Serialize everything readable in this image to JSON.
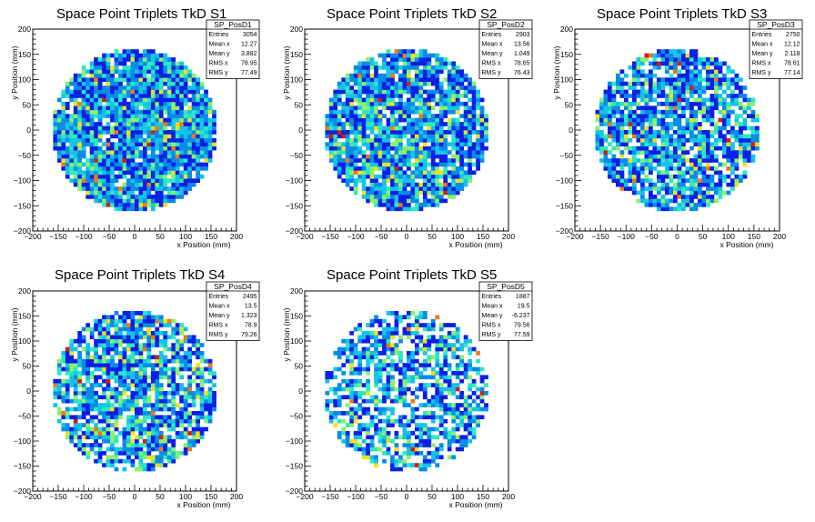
{
  "chart_data": [
    {
      "type": "heatmap",
      "title": "Space Point Triplets TkD S1",
      "xlabel": "x Position (mm)",
      "ylabel": "y Position (mm)",
      "xlim": [
        -200,
        200
      ],
      "ylim": [
        -200,
        200
      ],
      "xticks": [
        "−200",
        "−150",
        "−100",
        "−50",
        "0",
        "50",
        "100",
        "150",
        "200"
      ],
      "yticks": [
        "200",
        "150",
        "100",
        "50",
        "0",
        "−50",
        "−100",
        "−150",
        "−200"
      ],
      "stats": {
        "name": "SP_PosD1",
        "rows": [
          {
            "label": "Entries",
            "value": "3054"
          },
          {
            "label": "Mean x",
            "value": "12.27"
          },
          {
            "label": "Mean y",
            "value": "3.882"
          },
          {
            "label": "RMS x",
            "value": "78.95"
          },
          {
            "label": "RMS y",
            "value": "77.49"
          }
        ]
      }
    },
    {
      "type": "heatmap",
      "title": "Space Point Triplets TkD S2",
      "xlabel": "x Position (mm)",
      "ylabel": "y Position (mm)",
      "xlim": [
        -200,
        200
      ],
      "ylim": [
        -200,
        200
      ],
      "xticks": [
        "−200",
        "−150",
        "−100",
        "−50",
        "0",
        "50",
        "100",
        "150",
        "200"
      ],
      "yticks": [
        "200",
        "150",
        "100",
        "50",
        "0",
        "−50",
        "−100",
        "−150",
        "−200"
      ],
      "stats": {
        "name": "SP_PosD2",
        "rows": [
          {
            "label": "Entries",
            "value": "2903"
          },
          {
            "label": "Mean x",
            "value": "13.56"
          },
          {
            "label": "Mean y",
            "value": "1.049"
          },
          {
            "label": "RMS x",
            "value": "78.65"
          },
          {
            "label": "RMS y",
            "value": "76.43"
          }
        ]
      }
    },
    {
      "type": "heatmap",
      "title": "Space Point Triplets TkD S3",
      "xlabel": "x Position (mm)",
      "ylabel": "y Position (mm)",
      "xlim": [
        -200,
        200
      ],
      "ylim": [
        -200,
        200
      ],
      "xticks": [
        "−200",
        "−150",
        "−100",
        "−50",
        "0",
        "50",
        "100",
        "150",
        "200"
      ],
      "yticks": [
        "200",
        "150",
        "100",
        "50",
        "0",
        "−50",
        "−100",
        "−150",
        "−200"
      ],
      "stats": {
        "name": "SP_PosD3",
        "rows": [
          {
            "label": "Entries",
            "value": "2750"
          },
          {
            "label": "Mean x",
            "value": "12.12"
          },
          {
            "label": "Mean y",
            "value": "2.118"
          },
          {
            "label": "RMS x",
            "value": "78.61"
          },
          {
            "label": "RMS y",
            "value": "77.14"
          }
        ]
      }
    },
    {
      "type": "heatmap",
      "title": "Space Point Triplets TkD S4",
      "xlabel": "x Position (mm)",
      "ylabel": "y Position (mm)",
      "xlim": [
        -200,
        200
      ],
      "ylim": [
        -200,
        200
      ],
      "xticks": [
        "−200",
        "−150",
        "−100",
        "−50",
        "0",
        "50",
        "100",
        "150",
        "200"
      ],
      "yticks": [
        "200",
        "150",
        "100",
        "50",
        "0",
        "−50",
        "−100",
        "−150",
        "−200"
      ],
      "stats": {
        "name": "SP_PosD4",
        "rows": [
          {
            "label": "Entries",
            "value": "2495"
          },
          {
            "label": "Mean x",
            "value": "13.5"
          },
          {
            "label": "Mean y",
            "value": "1.323"
          },
          {
            "label": "RMS x",
            "value": "78.9"
          },
          {
            "label": "RMS y",
            "value": "79.26"
          }
        ]
      }
    },
    {
      "type": "heatmap",
      "title": "Space Point Triplets TkD S5",
      "xlabel": "x Position (mm)",
      "ylabel": "y Position (mm)",
      "xlim": [
        -200,
        200
      ],
      "ylim": [
        -200,
        200
      ],
      "xticks": [
        "−200",
        "−150",
        "−100",
        "−50",
        "0",
        "50",
        "100",
        "150",
        "200"
      ],
      "yticks": [
        "200",
        "150",
        "100",
        "50",
        "0",
        "−50",
        "−100",
        "−150",
        "−200"
      ],
      "stats": {
        "name": "SP_PosD5",
        "rows": [
          {
            "label": "Entries",
            "value": "1887"
          },
          {
            "label": "Mean x",
            "value": "19.5"
          },
          {
            "label": "Mean y",
            "value": "-6.237"
          },
          {
            "label": "RMS x",
            "value": "79.56"
          },
          {
            "label": "RMS y",
            "value": "77.59"
          }
        ]
      }
    }
  ],
  "colors": {
    "palette": [
      "#0b1fe6",
      "#0a8be8",
      "#15c4e8",
      "#2ee8c0",
      "#8cf06a",
      "#f0e020",
      "#f07818",
      "#d81a10"
    ],
    "frame": "#000000",
    "background": "#ffffff"
  }
}
